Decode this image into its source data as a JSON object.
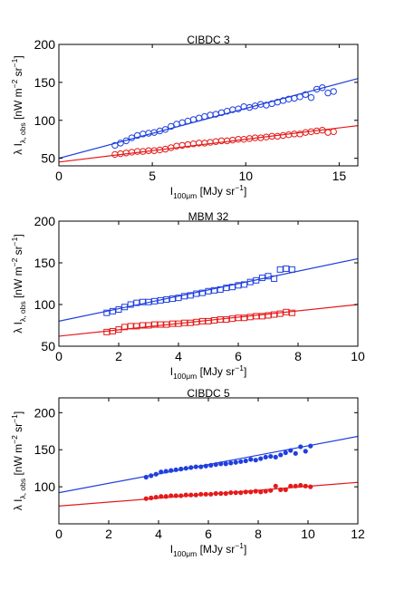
{
  "chart_data": [
    {
      "type": "scatter",
      "title": "CIBDC 3",
      "marker": "circle",
      "xlim": [
        0,
        16
      ],
      "ylim": [
        40,
        200
      ],
      "xticks": [
        0,
        5,
        10,
        15
      ],
      "yticks": [
        50,
        100,
        150,
        200
      ],
      "xlabel": {
        "main": "I",
        "sub": "100μm",
        "rest": " [MJy sr",
        "sup": "−1",
        "close": "]"
      },
      "ylabel": {
        "main": "λ I",
        "sub": "λ, obs",
        "rest": " [nW m",
        "sup1": "−2",
        "mid": " sr",
        "sup2": "−1",
        "close": "]"
      },
      "series": [
        {
          "color": "#1f3fe0",
          "fit": {
            "x": [
              0,
              16
            ],
            "y": [
              50,
              155
            ]
          },
          "points": {
            "x": [
              3.0,
              3.3,
              3.6,
              3.9,
              4.2,
              4.5,
              4.8,
              5.1,
              5.4,
              5.7,
              6.0,
              6.3,
              6.6,
              6.9,
              7.2,
              7.5,
              7.8,
              8.1,
              8.4,
              8.7,
              9.0,
              9.3,
              9.6,
              9.9,
              10.2,
              10.5,
              10.8,
              11.1,
              11.4,
              11.7,
              12.0,
              12.3,
              12.6,
              12.9,
              13.2,
              13.5,
              13.8,
              14.1,
              14.4,
              14.7
            ],
            "y": [
              67,
              70,
              73,
              77,
              80,
              82,
              83,
              84,
              86,
              88,
              92,
              95,
              97,
              99,
              101,
              103,
              105,
              107,
              108,
              110,
              112,
              114,
              115,
              118,
              117,
              119,
              121,
              120,
              122,
              124,
              126,
              128,
              129,
              131,
              134,
              130,
              141,
              143,
              136,
              138
            ]
          }
        },
        {
          "color": "#e41a1a",
          "fit": {
            "x": [
              0,
              16
            ],
            "y": [
              45,
              93
            ]
          },
          "points": {
            "x": [
              3.0,
              3.3,
              3.6,
              3.9,
              4.2,
              4.5,
              4.8,
              5.1,
              5.4,
              5.7,
              6.0,
              6.3,
              6.6,
              6.9,
              7.2,
              7.5,
              7.8,
              8.1,
              8.4,
              8.7,
              9.0,
              9.3,
              9.6,
              9.9,
              10.2,
              10.5,
              10.8,
              11.1,
              11.4,
              11.7,
              12.0,
              12.3,
              12.6,
              12.9,
              13.2,
              13.5,
              13.8,
              14.1,
              14.4,
              14.7
            ],
            "y": [
              55,
              56,
              57,
              58,
              59,
              59,
              60,
              60,
              61,
              62,
              64,
              66,
              67,
              68,
              69,
              70,
              70,
              71,
              72,
              73,
              73,
              74,
              75,
              75,
              76,
              77,
              77,
              78,
              79,
              79,
              80,
              81,
              82,
              82,
              84,
              85,
              86,
              87,
              84,
              85
            ]
          }
        }
      ]
    },
    {
      "type": "scatter",
      "title": "MBM 32",
      "marker": "square",
      "xlim": [
        0,
        10
      ],
      "ylim": [
        50,
        200
      ],
      "xticks": [
        0,
        2,
        4,
        6,
        8,
        10
      ],
      "yticks": [
        50,
        100,
        150,
        200
      ],
      "xlabel": {
        "main": "I",
        "sub": "100μm",
        "rest": " [MJy sr",
        "sup": "−1",
        "close": "]"
      },
      "ylabel": {
        "main": "λ I",
        "sub": "λ, obs",
        "rest": " [nW m",
        "sup1": "−2",
        "mid": " sr",
        "sup2": "−1",
        "close": "]"
      },
      "series": [
        {
          "color": "#1f3fe0",
          "fit": {
            "x": [
              0,
              10
            ],
            "y": [
              80,
              155
            ]
          },
          "points": {
            "x": [
              1.6,
              1.8,
              2.0,
              2.2,
              2.4,
              2.6,
              2.8,
              3.0,
              3.2,
              3.4,
              3.6,
              3.8,
              4.0,
              4.2,
              4.4,
              4.6,
              4.8,
              5.0,
              5.2,
              5.4,
              5.6,
              5.8,
              6.0,
              6.2,
              6.4,
              6.6,
              6.8,
              7.0,
              7.2,
              7.4,
              7.6,
              7.8
            ],
            "y": [
              90,
              92,
              94,
              97,
              100,
              102,
              103,
              103,
              104,
              105,
              106,
              107,
              108,
              110,
              111,
              113,
              114,
              116,
              117,
              118,
              120,
              121,
              123,
              124,
              127,
              129,
              132,
              134,
              131,
              142,
              143,
              142
            ]
          }
        },
        {
          "color": "#e41a1a",
          "fit": {
            "x": [
              0,
              10
            ],
            "y": [
              62,
              100
            ]
          },
          "points": {
            "x": [
              1.6,
              1.8,
              2.0,
              2.2,
              2.4,
              2.6,
              2.8,
              3.0,
              3.2,
              3.4,
              3.6,
              3.8,
              4.0,
              4.2,
              4.4,
              4.6,
              4.8,
              5.0,
              5.2,
              5.4,
              5.6,
              5.8,
              6.0,
              6.2,
              6.4,
              6.6,
              6.8,
              7.0,
              7.2,
              7.4,
              7.6,
              7.8
            ],
            "y": [
              67,
              68,
              70,
              73,
              74,
              74,
              75,
              75,
              76,
              76,
              76,
              77,
              77,
              78,
              78,
              79,
              80,
              80,
              81,
              82,
              82,
              83,
              84,
              84,
              85,
              86,
              86,
              87,
              88,
              89,
              91,
              90
            ]
          }
        }
      ]
    },
    {
      "type": "scatter",
      "title": "CIBDC 5",
      "marker": "dot",
      "xlim": [
        0,
        12
      ],
      "ylim": [
        50,
        220
      ],
      "xticks": [
        0,
        2,
        4,
        6,
        8,
        10,
        12
      ],
      "yticks": [
        100,
        150,
        200
      ],
      "xlabel": {
        "main": "I",
        "sub": "100μm",
        "rest": " [MJy sr",
        "sup": "−1",
        "close": "]"
      },
      "ylabel": {
        "main": "λ I",
        "sub": "λ, obs",
        "rest": " [nW m",
        "sup1": "−2",
        "mid": " sr",
        "sup2": "−1",
        "close": "]"
      },
      "series": [
        {
          "color": "#1f3fe0",
          "fit": {
            "x": [
              0,
              12
            ],
            "y": [
              92,
              168
            ]
          },
          "points": {
            "x": [
              3.5,
              3.7,
              3.9,
              4.1,
              4.3,
              4.5,
              4.7,
              4.9,
              5.1,
              5.3,
              5.5,
              5.7,
              5.9,
              6.1,
              6.3,
              6.5,
              6.7,
              6.9,
              7.1,
              7.3,
              7.5,
              7.7,
              7.9,
              8.1,
              8.3,
              8.5,
              8.7,
              8.9,
              9.1,
              9.3,
              9.5,
              9.7,
              9.9,
              10.1
            ],
            "y": [
              113,
              115,
              117,
              120,
              121,
              122,
              123,
              124,
              125,
              126,
              127,
              127,
              128,
              129,
              130,
              131,
              131,
              132,
              133,
              134,
              135,
              137,
              136,
              138,
              140,
              141,
              140,
              143,
              146,
              149,
              145,
              154,
              148,
              155
            ]
          }
        },
        {
          "color": "#e41a1a",
          "fit": {
            "x": [
              0,
              12
            ],
            "y": [
              74,
              106
            ]
          },
          "points": {
            "x": [
              3.5,
              3.7,
              3.9,
              4.1,
              4.3,
              4.5,
              4.7,
              4.9,
              5.1,
              5.3,
              5.5,
              5.7,
              5.9,
              6.1,
              6.3,
              6.5,
              6.7,
              6.9,
              7.1,
              7.3,
              7.5,
              7.7,
              7.9,
              8.1,
              8.3,
              8.5,
              8.7,
              8.9,
              9.1,
              9.3,
              9.5,
              9.7,
              9.9,
              10.1
            ],
            "y": [
              84,
              85,
              86,
              87,
              87,
              88,
              88,
              88,
              89,
              89,
              89,
              90,
              90,
              90,
              91,
              91,
              91,
              92,
              92,
              92,
              93,
              93,
              94,
              93,
              94,
              95,
              101,
              96,
              96,
              101,
              101,
              102,
              101,
              100
            ]
          }
        }
      ]
    }
  ]
}
